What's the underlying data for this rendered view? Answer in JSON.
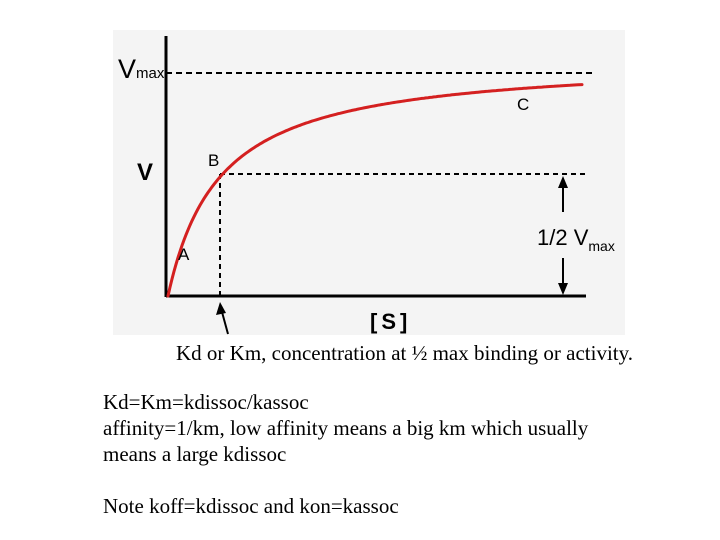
{
  "diagram": {
    "labels": {
      "vmax_main": "V",
      "vmax_sub": "max",
      "v_axis": "V",
      "point_a": "A",
      "point_b": "B",
      "point_c": "C",
      "half_prefix": "1/2 V",
      "half_sub": "max",
      "x_axis": "[S]"
    },
    "colors": {
      "curve": "#d42020",
      "axes": "#000000",
      "panel": "#f4f4f4"
    }
  },
  "caption": "Kd or Km, concentration at ½ max binding or activity.",
  "notes": {
    "line1": "Kd=Km=kdissoc/kassoc",
    "line2": "affinity=1/km, low affinity means a big km which usually",
    "line3": "means a large kdissoc",
    "line4": "Note koff=kdissoc and kon=kassoc"
  }
}
